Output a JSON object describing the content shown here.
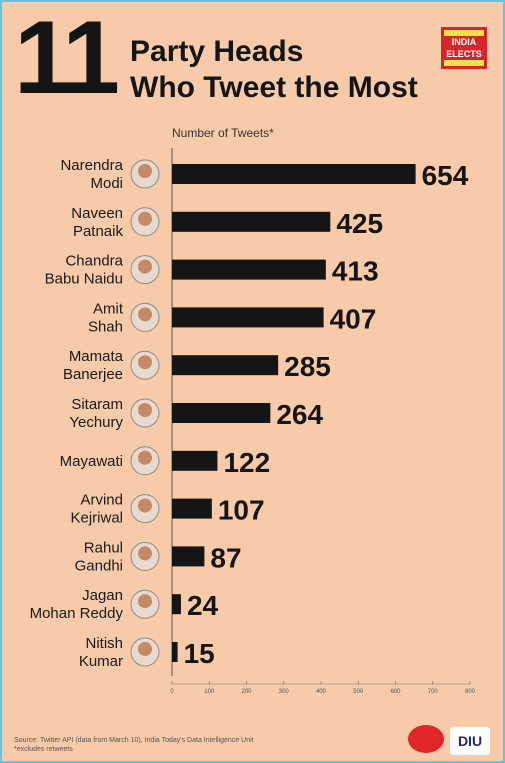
{
  "header": {
    "big_number": "11",
    "title_line1": "Party Heads",
    "title_line2": "Who Tweet the Most",
    "logo_line1": "INDIA",
    "logo_line2": "ELECTS"
  },
  "footer": {
    "source": "Source: Twitter API (data from March 10), India Today's Data Intelligence Unit",
    "note": "*excludes retweets",
    "diu_logo": "DIU"
  },
  "colors": {
    "background": "#f7caa9",
    "bar": "#151515",
    "border": "#62c3d9"
  },
  "chart_data": {
    "type": "bar",
    "orientation": "horizontal",
    "axis_title": "Number of Tweets*",
    "categories": [
      [
        "Narendra",
        "Modi"
      ],
      [
        "Naveen",
        "Patnaik"
      ],
      [
        "Chandra",
        "Babu Naidu"
      ],
      [
        "Amit",
        "Shah"
      ],
      [
        "Mamata",
        "Banerjee"
      ],
      [
        "Sitaram",
        "Yechury"
      ],
      [
        "Mayawati"
      ],
      [
        "Arvind",
        "Kejriwal"
      ],
      [
        "Rahul",
        "Gandhi"
      ],
      [
        "Jagan",
        "Mohan Reddy"
      ],
      [
        "Nitish",
        "Kumar"
      ]
    ],
    "values": [
      654,
      425,
      413,
      407,
      285,
      264,
      122,
      107,
      87,
      24,
      15
    ],
    "xlim": [
      0,
      800
    ],
    "ticks": [
      0,
      100,
      200,
      300,
      400,
      500,
      600,
      700,
      800
    ],
    "grid": false,
    "legend": "none"
  }
}
